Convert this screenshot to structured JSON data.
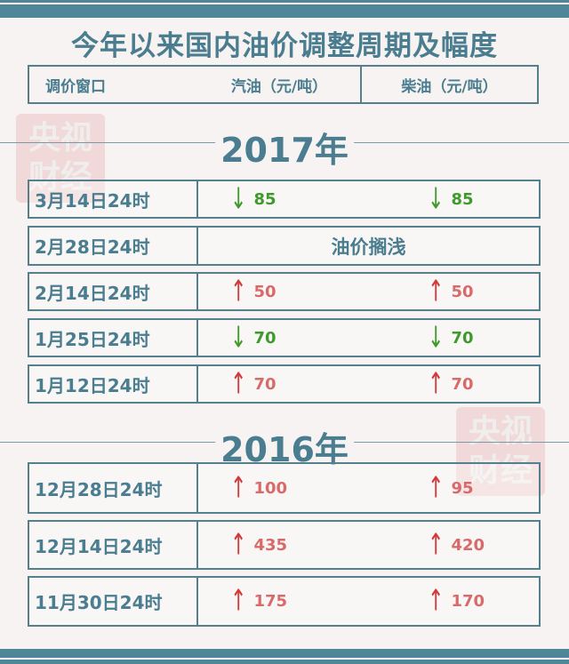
{
  "title": "今年以来国内油价调整周期及幅度",
  "header": {
    "col1": "调价窗口",
    "col2": "汽油（元/吨）",
    "col3": "柴油（元/吨）"
  },
  "watermark": "央视财经",
  "colors": {
    "accent": "#4a7d8f",
    "up": "#d03a3a",
    "down": "#3f9a2c"
  },
  "sections": [
    {
      "year": "2017年",
      "rows": [
        {
          "date": "3月14日24时",
          "dir": "down",
          "gasoline": "85",
          "diesel": "85"
        },
        {
          "date": "2月28日24时",
          "note": "油价搁浅"
        },
        {
          "date": "2月14日24时",
          "dir": "up",
          "gasoline": "50",
          "diesel": "50"
        },
        {
          "date": "1月25日24时",
          "dir": "down",
          "gasoline": "70",
          "diesel": "70"
        },
        {
          "date": "1月12日24时",
          "dir": "up",
          "gasoline": "70",
          "diesel": "70"
        }
      ]
    },
    {
      "year": "2016年",
      "rows": [
        {
          "date": "12月28日24时",
          "dir": "up",
          "gasoline": "100",
          "diesel": "95"
        },
        {
          "date": "12月14日24时",
          "dir": "up",
          "gasoline": "435",
          "diesel": "420"
        },
        {
          "date": "11月30日24时",
          "dir": "up",
          "gasoline": "175",
          "diesel": "170"
        }
      ]
    }
  ]
}
